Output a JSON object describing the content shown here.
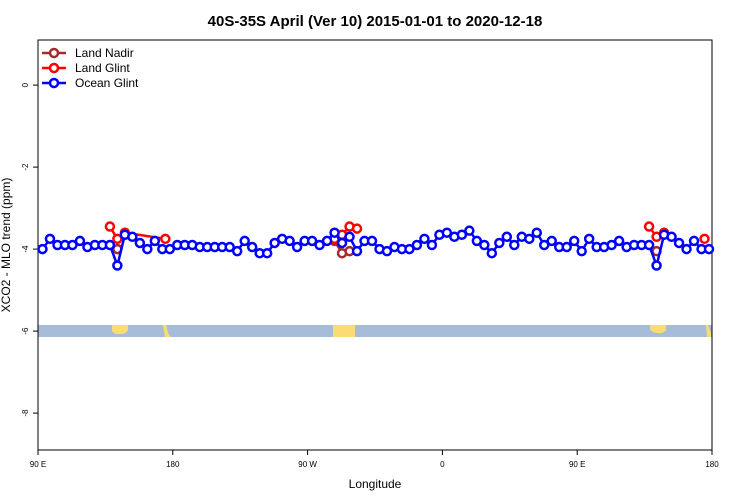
{
  "chart_data": {
    "type": "line",
    "title": "40S-35S April (Ver 10)   2015-01-01 to 2020-12-18",
    "xlabel": "Longitude",
    "ylabel": "XCO2 - MLO trend (ppm)",
    "xlim": [
      90,
      540
    ],
    "ylim": [
      -8.9,
      1.1
    ],
    "xticks": [
      {
        "value": 90,
        "label": "90 E"
      },
      180,
      {
        "value": 270,
        "label": "90 W"
      },
      {
        "value": 360,
        "label": "0"
      },
      {
        "value": 450,
        "label": "90 E"
      },
      {
        "value": 540,
        "label": "180"
      }
    ],
    "yticks": [
      0,
      -2,
      -4,
      -6,
      -8
    ],
    "legend": "top-left",
    "series": [
      {
        "name": "Land Nadir",
        "color": "#a52a2a",
        "x": [
          143,
          null,
          288,
          293,
          298,
          null,
          503
        ],
        "values": [
          -4.0,
          null,
          -3.8,
          -4.1,
          -4.05,
          null,
          -4.05
        ]
      },
      {
        "name": "Land Glint",
        "color": "#ff0000",
        "x": [
          138,
          143,
          148,
          175,
          null,
          288,
          293,
          298,
          303,
          null,
          498,
          503,
          508,
          null,
          535
        ],
        "values": [
          -3.45,
          -3.75,
          -3.6,
          -3.75,
          null,
          -3.75,
          -3.65,
          -3.45,
          -3.5,
          null,
          -3.45,
          -3.7,
          -3.6,
          null,
          -3.75
        ]
      },
      {
        "name": "Ocean Glint",
        "color": "#0000ff",
        "x": [
          93,
          98,
          103,
          108,
          113,
          118,
          123,
          128,
          133,
          138,
          143,
          148,
          153,
          158,
          163,
          168,
          173,
          178,
          183,
          188,
          193,
          198,
          203,
          208,
          213,
          218,
          223,
          228,
          233,
          238,
          243,
          248,
          253,
          258,
          263,
          268,
          273,
          278,
          283,
          288,
          293,
          298,
          303,
          308,
          313,
          318,
          323,
          328,
          333,
          338,
          343,
          348,
          353,
          358,
          363,
          368,
          373,
          378,
          383,
          388,
          393,
          398,
          403,
          408,
          413,
          418,
          423,
          428,
          433,
          438,
          443,
          448,
          453,
          458,
          463,
          468,
          473,
          478,
          483,
          488,
          493,
          498,
          503,
          508,
          513,
          518,
          523,
          528,
          533,
          538
        ],
        "values": [
          -4.0,
          -3.75,
          -3.9,
          -3.9,
          -3.9,
          -3.8,
          -3.95,
          -3.9,
          -3.9,
          -3.9,
          -4.4,
          -3.65,
          -3.7,
          -3.85,
          -4.0,
          -3.8,
          -4.0,
          -4.0,
          -3.9,
          -3.9,
          -3.9,
          -3.95,
          -3.95,
          -3.95,
          -3.95,
          -3.95,
          -4.05,
          -3.8,
          -3.95,
          -4.1,
          -4.1,
          -3.85,
          -3.75,
          -3.8,
          -3.95,
          -3.8,
          -3.8,
          -3.9,
          -3.8,
          -3.6,
          -3.85,
          -3.7,
          -4.05,
          -3.8,
          -3.8,
          -4.0,
          -4.05,
          -3.95,
          -4.0,
          -4.0,
          -3.9,
          -3.75,
          -3.9,
          -3.65,
          -3.6,
          -3.7,
          -3.65,
          -3.55,
          -3.8,
          -3.9,
          -4.1,
          -3.85,
          -3.7,
          -3.9,
          -3.7,
          -3.75,
          -3.6,
          -3.9,
          -3.8,
          -3.95,
          -3.95,
          -3.8,
          -4.05,
          -3.75,
          -3.95,
          -3.95,
          -3.9,
          -3.8,
          -3.95,
          -3.9,
          -3.9,
          -3.9,
          -4.4,
          -3.65,
          -3.7,
          -3.85,
          -4.0,
          -3.8,
          -4.0,
          -4.0
        ]
      }
    ]
  }
}
